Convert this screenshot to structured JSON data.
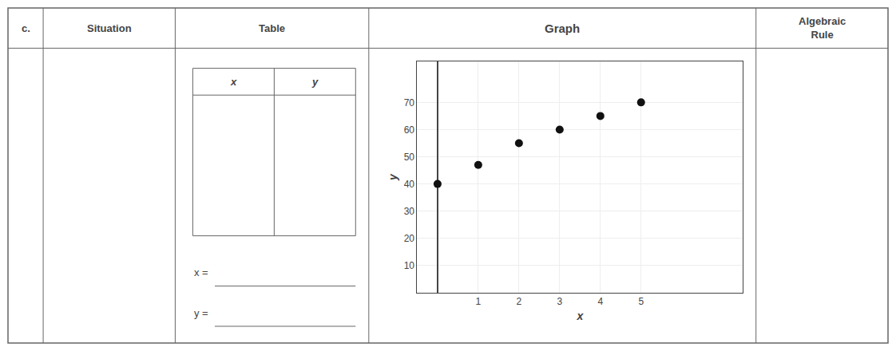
{
  "chart_data": {
    "type": "scatter",
    "title": "Graph",
    "x": [
      0,
      1,
      2,
      3,
      4,
      5
    ],
    "values": [
      40,
      47,
      55,
      60,
      65,
      70
    ],
    "color": "#111111",
    "marker": "circle",
    "x_label": "x",
    "y_label": "y",
    "xlim": [
      -0.5,
      7.5
    ],
    "ylim": [
      0,
      85
    ],
    "xticks": [
      1,
      2,
      3,
      4,
      5
    ],
    "yticks": [
      10,
      20,
      30,
      40,
      50,
      60,
      70
    ],
    "grid": true,
    "annotations": [
      "c.",
      "Situation",
      "Table",
      "Algebraic\nRule",
      "x",
      "y",
      "x =",
      "y ="
    ]
  }
}
